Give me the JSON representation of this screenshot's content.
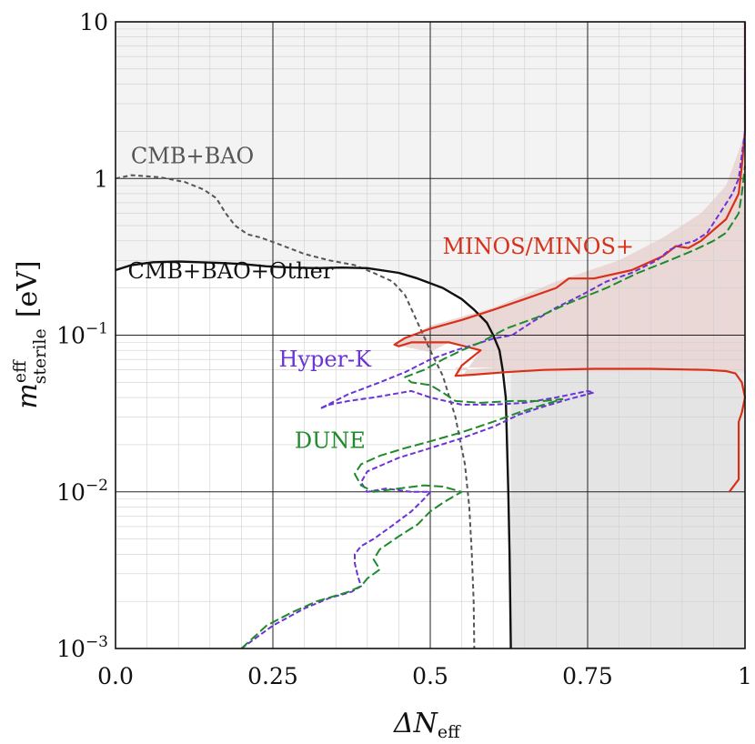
{
  "chart_data": {
    "type": "line",
    "xlabel": {
      "main": "ΔN",
      "sub": "eff"
    },
    "ylabel": {
      "main": "m",
      "sup": "eff",
      "sub": "sterile",
      "unit": "[eV]"
    },
    "xlim": [
      0,
      1
    ],
    "ylim": [
      0.001,
      10
    ],
    "yscale": "log",
    "grid": true,
    "x_ticks": [
      0,
      0.25,
      0.5,
      0.75,
      1
    ],
    "x_tick_labels": [
      "0.0",
      "0.25",
      "0.5",
      "0.75",
      "1"
    ],
    "y_ticks": [
      {
        "value": 10,
        "base": "10",
        "exp": ""
      },
      {
        "value": 1,
        "base": "1",
        "exp": ""
      },
      {
        "value": 0.1,
        "base": "10",
        "exp": "−1"
      },
      {
        "value": 0.01,
        "base": "10",
        "exp": "−2"
      },
      {
        "value": 0.001,
        "base": "10",
        "exp": "−3"
      }
    ],
    "regions": [
      {
        "name": "cmb-bao-excluded",
        "fill": "#e4e4e4",
        "points": [
          [
            0,
            10
          ],
          [
            1,
            10
          ],
          [
            1,
            1.0
          ],
          [
            0.995,
            0.6
          ],
          [
            0.98,
            0.35
          ],
          [
            0.95,
            0.2
          ],
          [
            0.87,
            0.1
          ],
          [
            0.8,
            0.06
          ],
          [
            0.72,
            0.05
          ],
          [
            0.62,
            0.11
          ],
          [
            0.56,
            0.2
          ],
          [
            0.45,
            0.26
          ],
          [
            0.38,
            0.3
          ],
          [
            0.3,
            0.4
          ],
          [
            0.22,
            0.6
          ],
          [
            0.19,
            0.9
          ],
          [
            0.15,
            1.0
          ],
          [
            0.12,
            1.0
          ],
          [
            0,
            1.0
          ]
        ]
      },
      {
        "name": "cmb-bao-other-excluded",
        "fill": "#f3f3f3",
        "points": [
          [
            0,
            10
          ],
          [
            0,
            0.26
          ],
          [
            0.025,
            0.28
          ],
          [
            0.08,
            0.295
          ],
          [
            0.2,
            0.29
          ],
          [
            0.3,
            0.27
          ],
          [
            0.4,
            0.265
          ],
          [
            0.48,
            0.235
          ],
          [
            0.55,
            0.18
          ],
          [
            0.6,
            0.12
          ],
          [
            0.62,
            0.07
          ],
          [
            0.625,
            0.01
          ],
          [
            0.628,
            0.001
          ],
          [
            1,
            0.001
          ],
          [
            1,
            10
          ]
        ]
      },
      {
        "name": "vertical-band",
        "fill": "#e4e4e4",
        "points": [
          [
            0.628,
            0.001
          ],
          [
            0.628,
            0.09
          ],
          [
            1,
            0.09
          ],
          [
            1,
            0.001
          ]
        ]
      },
      {
        "name": "minos-excluded",
        "fill": "#ead8d6",
        "points": [
          [
            0.443,
            0.087
          ],
          [
            0.5,
            0.115
          ],
          [
            0.6,
            0.15
          ],
          [
            0.7,
            0.22
          ],
          [
            0.8,
            0.3
          ],
          [
            0.87,
            0.42
          ],
          [
            0.93,
            0.6
          ],
          [
            0.97,
            0.9
          ],
          [
            0.99,
            1.5
          ],
          [
            1,
            2
          ],
          [
            1,
            0.058
          ],
          [
            0.88,
            0.059
          ],
          [
            0.62,
            0.058
          ],
          [
            0.545,
            0.056
          ],
          [
            0.55,
            0.06
          ],
          [
            0.68,
            0.065
          ],
          [
            0.85,
            0.063
          ],
          [
            0.97,
            0.06
          ],
          [
            0.99,
            0.058
          ],
          [
            0.643,
            0.062
          ],
          [
            0.54,
            0.062
          ],
          [
            0.55,
            0.054
          ],
          [
            0.58,
            0.08
          ],
          [
            0.53,
            0.09
          ],
          [
            0.5,
            0.078
          ],
          [
            0.443,
            0.087
          ]
        ]
      }
    ],
    "series": [
      {
        "name": "CMB+BAO",
        "color": "#555555",
        "dash": "5,3.5",
        "width": 2,
        "points": [
          [
            0,
            1.0
          ],
          [
            0.025,
            1.05
          ],
          [
            0.07,
            1.02
          ],
          [
            0.11,
            0.95
          ],
          [
            0.14,
            0.85
          ],
          [
            0.16,
            0.75
          ],
          [
            0.175,
            0.6
          ],
          [
            0.19,
            0.5
          ],
          [
            0.21,
            0.44
          ],
          [
            0.23,
            0.42
          ],
          [
            0.26,
            0.38
          ],
          [
            0.3,
            0.33
          ],
          [
            0.34,
            0.3
          ],
          [
            0.38,
            0.28
          ],
          [
            0.41,
            0.25
          ],
          [
            0.44,
            0.22
          ],
          [
            0.46,
            0.18
          ],
          [
            0.48,
            0.12
          ],
          [
            0.5,
            0.08
          ],
          [
            0.52,
            0.055
          ],
          [
            0.54,
            0.03
          ],
          [
            0.555,
            0.015
          ],
          [
            0.562,
            0.008
          ],
          [
            0.566,
            0.004
          ],
          [
            0.569,
            0.002
          ],
          [
            0.57,
            0.001
          ]
        ]
      },
      {
        "name": "CMB+BAO+Other",
        "color": "#111111",
        "dash": "",
        "width": 2.4,
        "points": [
          [
            0,
            0.26
          ],
          [
            0.025,
            0.28
          ],
          [
            0.06,
            0.292
          ],
          [
            0.1,
            0.295
          ],
          [
            0.16,
            0.29
          ],
          [
            0.2,
            0.285
          ],
          [
            0.24,
            0.275
          ],
          [
            0.28,
            0.27
          ],
          [
            0.32,
            0.268
          ],
          [
            0.36,
            0.27
          ],
          [
            0.4,
            0.268
          ],
          [
            0.45,
            0.25
          ],
          [
            0.48,
            0.23
          ],
          [
            0.52,
            0.2
          ],
          [
            0.55,
            0.17
          ],
          [
            0.57,
            0.145
          ],
          [
            0.59,
            0.12
          ],
          [
            0.6,
            0.1
          ],
          [
            0.61,
            0.08
          ],
          [
            0.615,
            0.06
          ],
          [
            0.62,
            0.04
          ],
          [
            0.622,
            0.02
          ],
          [
            0.624,
            0.01
          ],
          [
            0.626,
            0.004
          ],
          [
            0.627,
            0.002
          ],
          [
            0.628,
            0.001
          ]
        ]
      },
      {
        "name": "MINOS/MINOS+",
        "color": "#d9301a",
        "dash": "",
        "width": 2.2,
        "points": [
          [
            0.975,
            0.01
          ],
          [
            0.99,
            0.012
          ],
          [
            0.99,
            0.022
          ],
          [
            0.99,
            0.028
          ],
          [
            0.995,
            0.032
          ],
          [
            1,
            0.04
          ],
          [
            0.995,
            0.05
          ],
          [
            0.985,
            0.057
          ],
          [
            0.97,
            0.059
          ],
          [
            0.94,
            0.06
          ],
          [
            0.85,
            0.061
          ],
          [
            0.76,
            0.061
          ],
          [
            0.68,
            0.06
          ],
          [
            0.62,
            0.058
          ],
          [
            0.57,
            0.056
          ],
          [
            0.54,
            0.055
          ],
          [
            0.55,
            0.064
          ],
          [
            0.58,
            0.08
          ],
          [
            0.53,
            0.09
          ],
          [
            0.47,
            0.09
          ],
          [
            0.45,
            0.085
          ],
          [
            0.443,
            0.087
          ],
          [
            0.46,
            0.096
          ],
          [
            0.5,
            0.11
          ],
          [
            0.55,
            0.125
          ],
          [
            0.6,
            0.145
          ],
          [
            0.65,
            0.17
          ],
          [
            0.7,
            0.2
          ],
          [
            0.72,
            0.23
          ],
          [
            0.76,
            0.23
          ],
          [
            0.82,
            0.26
          ],
          [
            0.87,
            0.32
          ],
          [
            0.89,
            0.37
          ],
          [
            0.91,
            0.36
          ],
          [
            0.93,
            0.4
          ],
          [
            0.97,
            0.55
          ],
          [
            0.99,
            0.8
          ],
          [
            0.995,
            1.2
          ],
          [
            1,
            2
          ],
          [
            1,
            10
          ]
        ]
      },
      {
        "name": "Hyper-K",
        "color": "#6a34d6",
        "dash": "6,3",
        "width": 2,
        "points": [
          [
            0.2,
            0.001
          ],
          [
            0.25,
            0.0014
          ],
          [
            0.3,
            0.0018
          ],
          [
            0.34,
            0.0021
          ],
          [
            0.375,
            0.0023
          ],
          [
            0.39,
            0.0025
          ],
          [
            0.385,
            0.0029
          ],
          [
            0.38,
            0.0035
          ],
          [
            0.38,
            0.004
          ],
          [
            0.39,
            0.0045
          ],
          [
            0.41,
            0.005
          ],
          [
            0.44,
            0.0061
          ],
          [
            0.47,
            0.0075
          ],
          [
            0.49,
            0.009
          ],
          [
            0.5,
            0.01
          ],
          [
            0.47,
            0.01
          ],
          [
            0.43,
            0.0105
          ],
          [
            0.4,
            0.01
          ],
          [
            0.39,
            0.0115
          ],
          [
            0.4,
            0.0135
          ],
          [
            0.45,
            0.0165
          ],
          [
            0.5,
            0.019
          ],
          [
            0.55,
            0.022
          ],
          [
            0.6,
            0.026
          ],
          [
            0.64,
            0.031
          ],
          [
            0.68,
            0.035
          ],
          [
            0.72,
            0.039
          ],
          [
            0.76,
            0.043
          ],
          [
            0.75,
            0.044
          ],
          [
            0.7,
            0.04
          ],
          [
            0.65,
            0.037
          ],
          [
            0.6,
            0.036
          ],
          [
            0.55,
            0.036
          ],
          [
            0.5,
            0.04
          ],
          [
            0.47,
            0.044
          ],
          [
            0.44,
            0.042
          ],
          [
            0.41,
            0.04
          ],
          [
            0.37,
            0.038
          ],
          [
            0.34,
            0.036
          ],
          [
            0.325,
            0.034
          ],
          [
            0.37,
            0.042
          ],
          [
            0.42,
            0.05
          ],
          [
            0.46,
            0.058
          ],
          [
            0.5,
            0.07
          ],
          [
            0.54,
            0.08
          ],
          [
            0.57,
            0.087
          ],
          [
            0.6,
            0.095
          ],
          [
            0.63,
            0.1
          ],
          [
            0.66,
            0.12
          ],
          [
            0.7,
            0.15
          ],
          [
            0.74,
            0.18
          ],
          [
            0.78,
            0.22
          ],
          [
            0.82,
            0.25
          ],
          [
            0.86,
            0.3
          ],
          [
            0.88,
            0.35
          ],
          [
            0.9,
            0.38
          ],
          [
            0.92,
            0.4
          ],
          [
            0.94,
            0.45
          ],
          [
            0.96,
            0.6
          ],
          [
            0.98,
            0.8
          ],
          [
            0.99,
            1.0
          ],
          [
            1,
            2
          ],
          [
            1,
            10
          ]
        ]
      },
      {
        "name": "DUNE",
        "color": "#1f8a2c",
        "dash": "10,4",
        "width": 2,
        "points": [
          [
            0.2,
            0.001
          ],
          [
            0.24,
            0.0014
          ],
          [
            0.28,
            0.0017
          ],
          [
            0.32,
            0.002
          ],
          [
            0.37,
            0.0023
          ],
          [
            0.39,
            0.0025
          ],
          [
            0.4,
            0.0028
          ],
          [
            0.42,
            0.0032
          ],
          [
            0.41,
            0.0037
          ],
          [
            0.42,
            0.0043
          ],
          [
            0.45,
            0.0052
          ],
          [
            0.48,
            0.0062
          ],
          [
            0.5,
            0.0075
          ],
          [
            0.52,
            0.0085
          ],
          [
            0.54,
            0.0095
          ],
          [
            0.55,
            0.01
          ],
          [
            0.52,
            0.0108
          ],
          [
            0.49,
            0.011
          ],
          [
            0.45,
            0.0105
          ],
          [
            0.41,
            0.01
          ],
          [
            0.39,
            0.011
          ],
          [
            0.38,
            0.013
          ],
          [
            0.39,
            0.015
          ],
          [
            0.42,
            0.017
          ],
          [
            0.46,
            0.019
          ],
          [
            0.5,
            0.021
          ],
          [
            0.55,
            0.024
          ],
          [
            0.6,
            0.028
          ],
          [
            0.64,
            0.032
          ],
          [
            0.68,
            0.036
          ],
          [
            0.71,
            0.039
          ],
          [
            0.68,
            0.038
          ],
          [
            0.63,
            0.038
          ],
          [
            0.58,
            0.037
          ],
          [
            0.54,
            0.038
          ],
          [
            0.52,
            0.043
          ],
          [
            0.5,
            0.048
          ],
          [
            0.47,
            0.05
          ],
          [
            0.46,
            0.054
          ],
          [
            0.49,
            0.06
          ],
          [
            0.52,
            0.07
          ],
          [
            0.55,
            0.08
          ],
          [
            0.58,
            0.09
          ],
          [
            0.62,
            0.11
          ],
          [
            0.67,
            0.13
          ],
          [
            0.72,
            0.16
          ],
          [
            0.78,
            0.2
          ],
          [
            0.83,
            0.25
          ],
          [
            0.88,
            0.3
          ],
          [
            0.92,
            0.35
          ],
          [
            0.95,
            0.4
          ],
          [
            0.97,
            0.45
          ],
          [
            0.99,
            0.6
          ],
          [
            0.995,
            0.8
          ],
          [
            1,
            1.2
          ]
        ]
      }
    ],
    "annotations": [
      {
        "text": "CMB+BAO",
        "x": 0.01,
        "y": 1.25,
        "color": "#555555"
      },
      {
        "text": "CMB+BAO+Other",
        "x": 0.005,
        "y": 0.23,
        "color": "#111111"
      },
      {
        "text": "MINOS/MINOS+",
        "x": 0.505,
        "y": 0.33,
        "color": "#d9301a"
      },
      {
        "text": "Hyper-K",
        "x": 0.245,
        "y": 0.063,
        "color": "#6a34d6"
      },
      {
        "text": "DUNE",
        "x": 0.27,
        "y": 0.019,
        "color": "#1f8a2c"
      }
    ]
  }
}
